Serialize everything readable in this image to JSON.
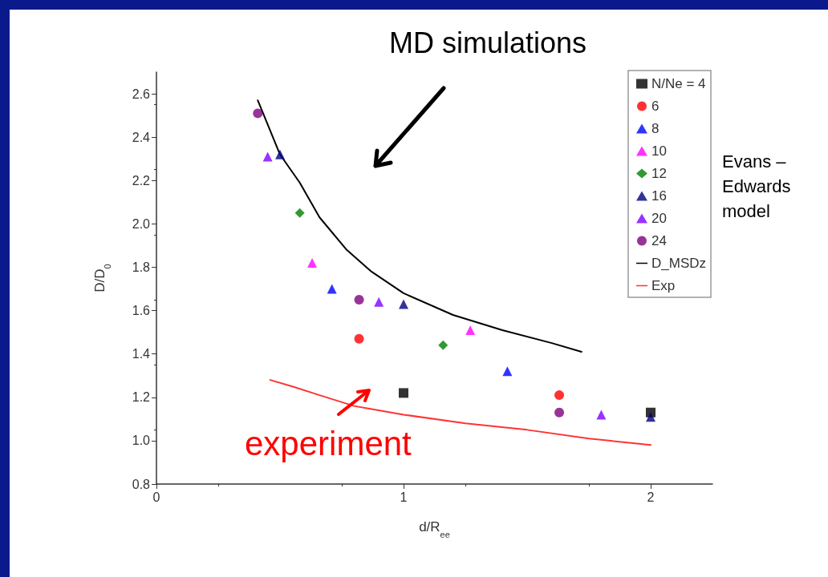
{
  "chart_data": {
    "type": "scatter",
    "title": "MD simulations",
    "xlabel": "d/R$_{ee}$",
    "ylabel": "D/D$_{0}$",
    "annotations": [
      "experiment",
      "Evans – Edwards model"
    ],
    "xlim": [
      0,
      2.25
    ],
    "xticks": [
      0,
      1,
      2
    ],
    "ylim": [
      0.8,
      2.7
    ],
    "yticks": [
      0.8,
      {
        "value": 1,
        "label": "1.0"
      },
      1.2,
      1.4,
      1.6,
      1.8,
      {
        "value": 2,
        "label": "2.0"
      },
      2.2,
      2.4,
      2.6
    ],
    "grid": false,
    "legend": "top right",
    "series": [
      {
        "name": "N/Ne = 4",
        "color": "#000000",
        "marker": "square",
        "x": [
          1.0,
          2.0
        ],
        "values": [
          1.22,
          1.13
        ]
      },
      {
        "name": "6",
        "color": "#ff0000",
        "marker": "circle",
        "x": [
          0.82,
          1.63
        ],
        "values": [
          1.47,
          1.21
        ]
      },
      {
        "name": "8",
        "color": "#0000ff",
        "marker": "triangle",
        "x": [
          0.71,
          1.42
        ],
        "values": [
          1.7,
          1.32
        ]
      },
      {
        "name": "10",
        "color": "#ff00ff",
        "marker": "triangle",
        "x": [
          0.63,
          1.27
        ],
        "values": [
          1.82,
          1.51
        ]
      },
      {
        "name": "12",
        "color": "#008000",
        "marker": "diamond",
        "x": [
          0.58,
          1.16
        ],
        "values": [
          2.05,
          1.44
        ]
      },
      {
        "name": "16",
        "color": "#000080",
        "marker": "triangle",
        "x": [
          0.5,
          1.0,
          2.0
        ],
        "values": [
          2.32,
          1.63,
          1.11
        ]
      },
      {
        "name": "20",
        "color": "#8000ff",
        "marker": "triangle",
        "x": [
          0.45,
          0.9,
          1.8
        ],
        "values": [
          2.31,
          1.64,
          1.12
        ]
      },
      {
        "name": "24",
        "color": "#800080",
        "marker": "circle",
        "x": [
          0.41,
          0.82,
          1.63
        ],
        "values": [
          2.51,
          1.65,
          1.13
        ]
      },
      {
        "name": "D_MSDz",
        "type": "line",
        "color": "#000000",
        "marker": "none",
        "line_style": "solid",
        "x": [
          0.41,
          0.5,
          0.58,
          0.66,
          0.77,
          0.87,
          1.0,
          1.2,
          1.4,
          1.6,
          1.72
        ],
        "values": [
          2.57,
          2.32,
          2.19,
          2.03,
          1.88,
          1.78,
          1.68,
          1.58,
          1.51,
          1.45,
          1.41
        ]
      },
      {
        "name": "Exp",
        "type": "line",
        "color": "#ff3333",
        "marker": "none",
        "line_style": "solid",
        "x": [
          0.46,
          0.55,
          0.66,
          0.8,
          1.0,
          1.25,
          1.5,
          1.75,
          2.0
        ],
        "values": [
          1.28,
          1.25,
          1.21,
          1.16,
          1.12,
          1.08,
          1.05,
          1.01,
          0.98
        ]
      }
    ]
  }
}
